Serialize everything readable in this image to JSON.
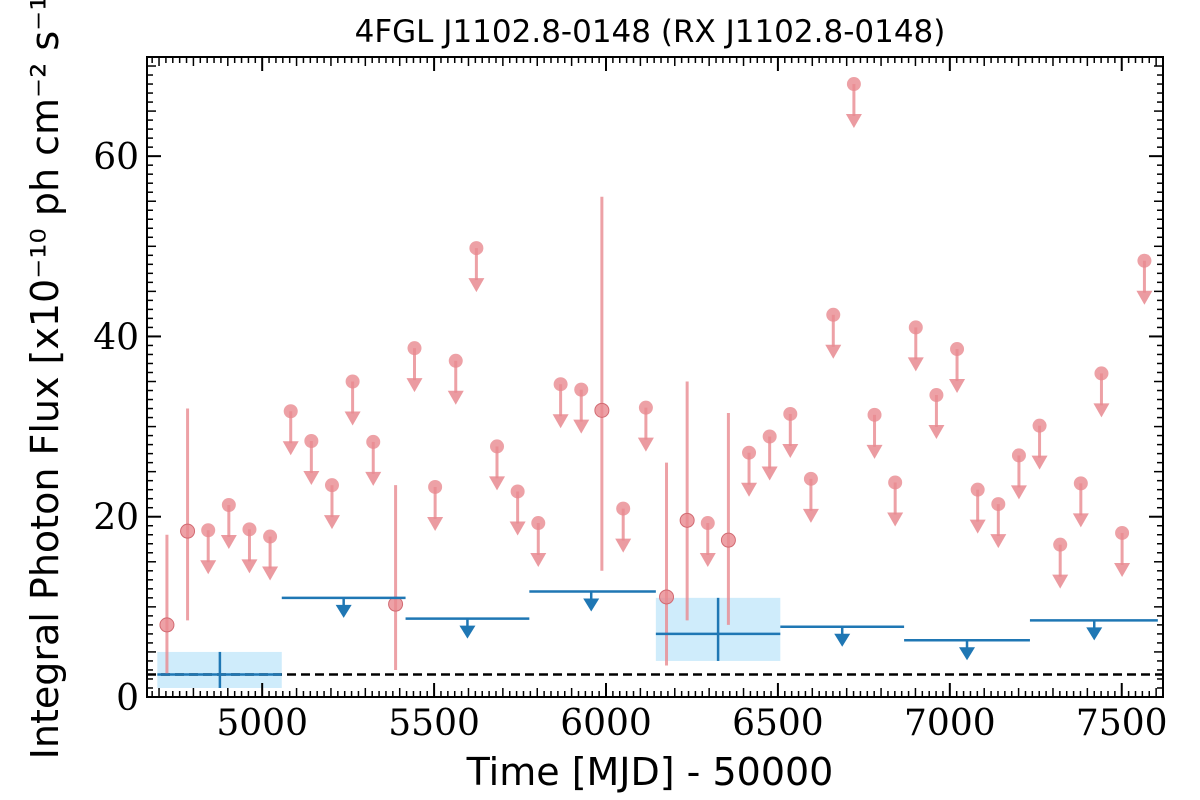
{
  "chart_data": {
    "type": "scatter",
    "title": "4FGL J1102.8-0148 (RX J1102.8-0148)",
    "xlabel": "Time [MJD] - 50000",
    "ylabel": "Integral Photon Flux [x10⁻¹⁰ ph cm⁻² s⁻¹]",
    "xlim": [
      4665,
      7620
    ],
    "ylim": [
      0,
      71
    ],
    "xticks": [
      5000,
      5500,
      6000,
      6500,
      7000,
      7500
    ],
    "xtick_labels": [
      "5000",
      "5500",
      "6000",
      "6500",
      "7000",
      "7500"
    ],
    "yticks": [
      0,
      20,
      40,
      60
    ],
    "ytick_labels": [
      "0",
      "20",
      "40",
      "60"
    ],
    "grid": false,
    "colors": {
      "short_bins": "#e88a90",
      "long_bins": "#1f77b4",
      "band": "#bfe6fa",
      "reference": "#000000"
    },
    "reference_line": 2.5,
    "series": [
      {
        "name": "",
        "bin_days": 60,
        "detections": [
          {
            "x": 4723,
            "y": 8.0,
            "ylo": 2.5,
            "yhi": 18.0
          },
          {
            "x": 4783,
            "y": 18.4,
            "ylo": 8.5,
            "yhi": 32.0
          },
          {
            "x": 5388,
            "y": 10.3,
            "ylo": 3.0,
            "yhi": 23.5
          },
          {
            "x": 5988,
            "y": 31.8,
            "ylo": 14.0,
            "yhi": 55.5
          },
          {
            "x": 6176,
            "y": 11.1,
            "ylo": 3.5,
            "yhi": 26.0
          },
          {
            "x": 6236,
            "y": 19.6,
            "ylo": 8.5,
            "yhi": 35.0
          },
          {
            "x": 6356,
            "y": 17.4,
            "ylo": 8.0,
            "yhi": 31.5
          }
        ],
        "upper_limits": [
          {
            "x": 4843,
            "y": 18.5
          },
          {
            "x": 4903,
            "y": 21.3
          },
          {
            "x": 4963,
            "y": 18.6
          },
          {
            "x": 5023,
            "y": 17.8
          },
          {
            "x": 5083,
            "y": 31.7
          },
          {
            "x": 5143,
            "y": 28.4
          },
          {
            "x": 5203,
            "y": 23.5
          },
          {
            "x": 5263,
            "y": 35.0
          },
          {
            "x": 5323,
            "y": 28.3
          },
          {
            "x": 5443,
            "y": 38.7
          },
          {
            "x": 5503,
            "y": 23.3
          },
          {
            "x": 5563,
            "y": 37.3
          },
          {
            "x": 5623,
            "y": 49.8
          },
          {
            "x": 5683,
            "y": 27.8
          },
          {
            "x": 5743,
            "y": 22.8
          },
          {
            "x": 5803,
            "y": 19.3
          },
          {
            "x": 5868,
            "y": 34.7
          },
          {
            "x": 5928,
            "y": 34.1
          },
          {
            "x": 6050,
            "y": 20.9
          },
          {
            "x": 6116,
            "y": 32.1
          },
          {
            "x": 6296,
            "y": 19.3
          },
          {
            "x": 6416,
            "y": 27.1
          },
          {
            "x": 6476,
            "y": 28.9
          },
          {
            "x": 6536,
            "y": 31.4
          },
          {
            "x": 6596,
            "y": 24.2
          },
          {
            "x": 6661,
            "y": 42.4
          },
          {
            "x": 6721,
            "y": 68.0
          },
          {
            "x": 6781,
            "y": 31.3
          },
          {
            "x": 6841,
            "y": 23.8
          },
          {
            "x": 6901,
            "y": 41.0
          },
          {
            "x": 6961,
            "y": 33.5
          },
          {
            "x": 7021,
            "y": 38.6
          },
          {
            "x": 7081,
            "y": 23.0
          },
          {
            "x": 7141,
            "y": 21.4
          },
          {
            "x": 7201,
            "y": 26.8
          },
          {
            "x": 7261,
            "y": 30.1
          },
          {
            "x": 7321,
            "y": 16.9
          },
          {
            "x": 7381,
            "y": 23.7
          },
          {
            "x": 7441,
            "y": 35.9
          },
          {
            "x": 7501,
            "y": 18.2
          },
          {
            "x": 7566,
            "y": 48.4
          }
        ]
      },
      {
        "name": "",
        "bin_days": 365,
        "detections": [
          {
            "x": 4877,
            "x0": 4695,
            "x1": 5057,
            "y": 2.5,
            "ylo": 1.0,
            "yhi": 5.0
          },
          {
            "x": 6326,
            "x0": 6145,
            "x1": 6507,
            "y": 7.0,
            "ylo": 4.0,
            "yhi": 11.0
          }
        ],
        "upper_limits": [
          {
            "x": 5237,
            "x0": 5057,
            "x1": 5417,
            "y": 11.0
          },
          {
            "x": 5597,
            "x0": 5417,
            "x1": 5777,
            "y": 8.7
          },
          {
            "x": 5957,
            "x0": 5777,
            "x1": 6145,
            "y": 11.7
          },
          {
            "x": 6687,
            "x0": 6507,
            "x1": 6867,
            "y": 7.8
          },
          {
            "x": 7050,
            "x0": 6867,
            "x1": 7233,
            "y": 6.3
          },
          {
            "x": 7420,
            "x0": 7233,
            "x1": 7605,
            "y": 8.5
          }
        ]
      }
    ]
  }
}
